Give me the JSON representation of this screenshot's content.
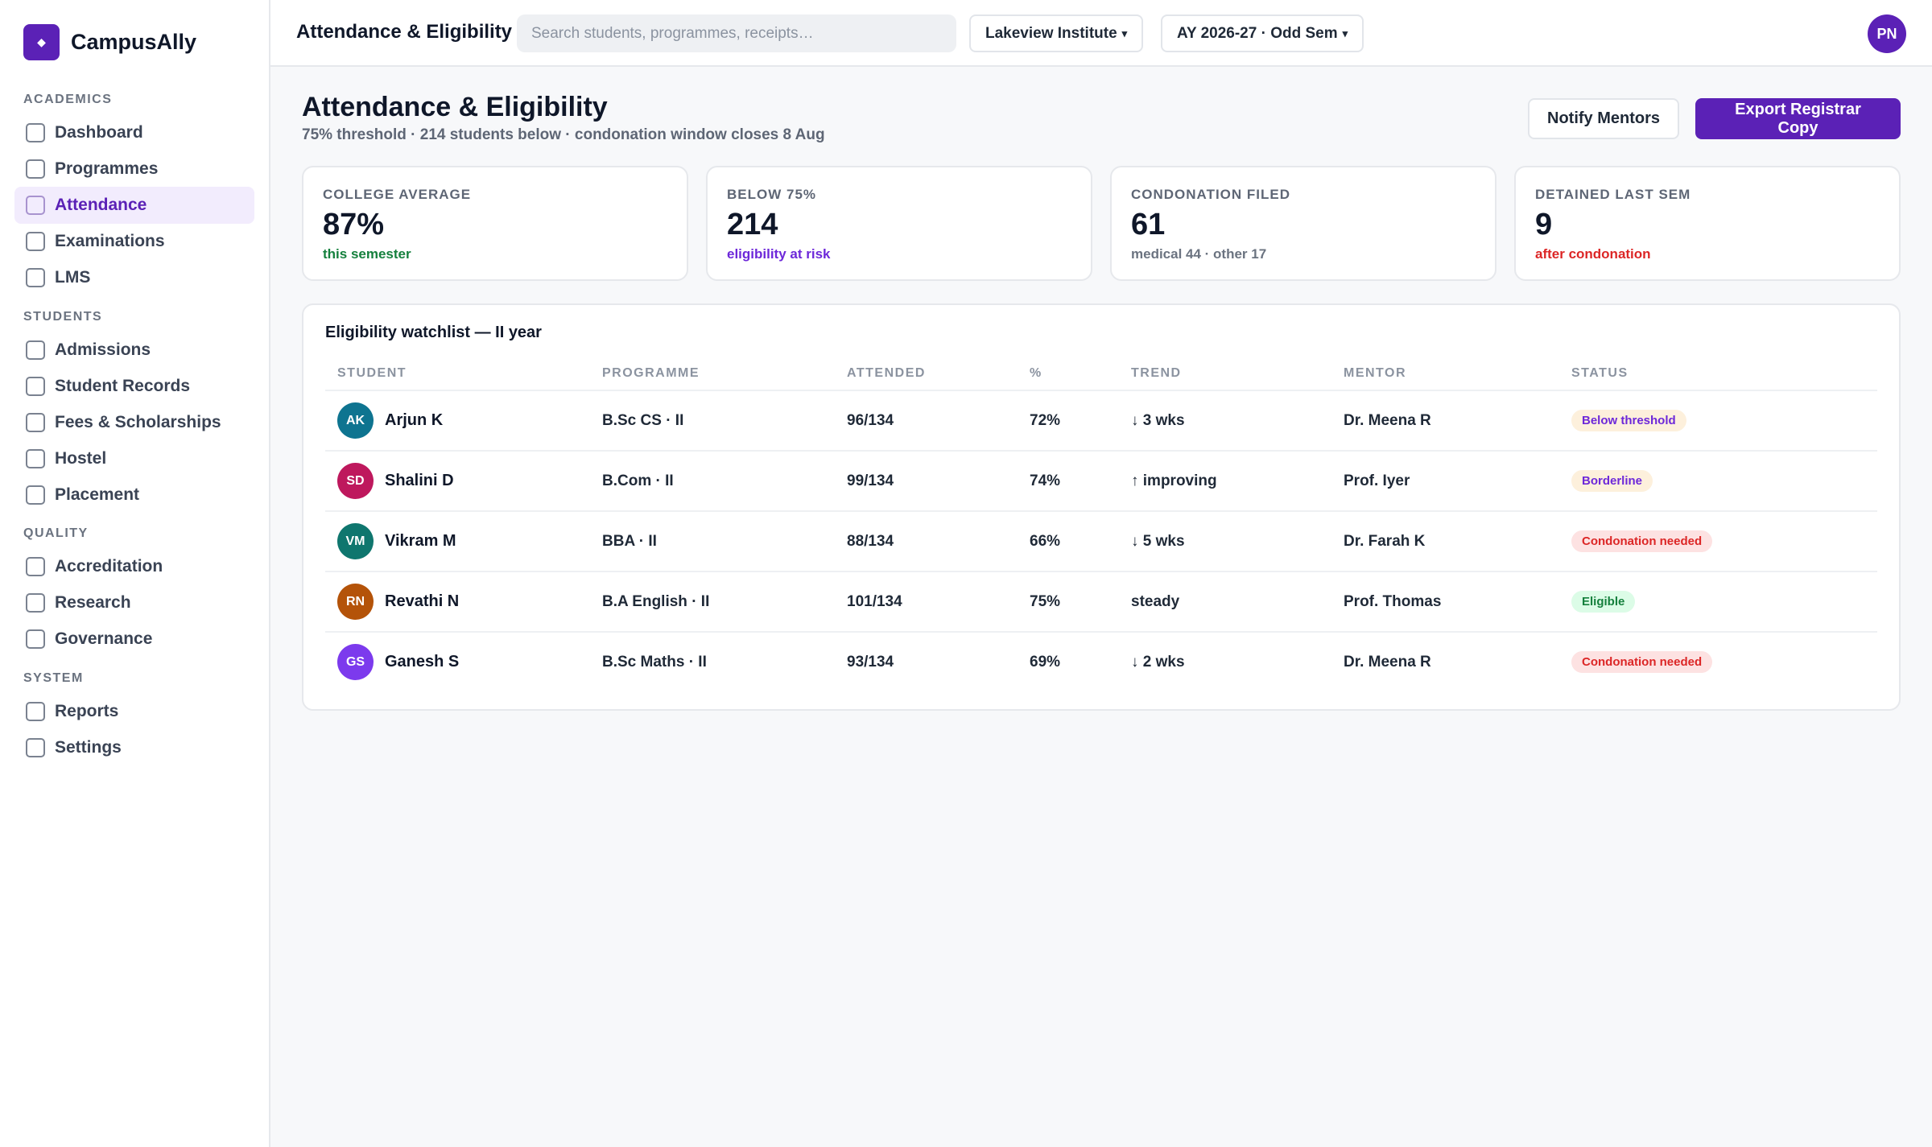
{
  "brand": {
    "logo_glyph": "◆",
    "name": "CampusAlly"
  },
  "sidebar": {
    "sections": [
      {
        "label": "ACADEMICS",
        "items": [
          {
            "label": "Dashboard",
            "active": false
          },
          {
            "label": "Programmes",
            "active": false
          },
          {
            "label": "Attendance",
            "active": true
          },
          {
            "label": "Examinations",
            "active": false
          },
          {
            "label": "LMS",
            "active": false
          }
        ]
      },
      {
        "label": "STUDENTS",
        "items": [
          {
            "label": "Admissions",
            "active": false
          },
          {
            "label": "Student Records",
            "active": false
          },
          {
            "label": "Fees & Scholarships",
            "active": false
          },
          {
            "label": "Hostel",
            "active": false
          },
          {
            "label": "Placement",
            "active": false
          }
        ]
      },
      {
        "label": "QUALITY",
        "items": [
          {
            "label": "Accreditation",
            "active": false
          },
          {
            "label": "Research",
            "active": false
          },
          {
            "label": "Governance",
            "active": false
          }
        ]
      },
      {
        "label": "SYSTEM",
        "items": [
          {
            "label": "Reports",
            "active": false
          },
          {
            "label": "Settings",
            "active": false
          }
        ]
      }
    ]
  },
  "topbar": {
    "title": "Attendance & Eligibility",
    "search_placeholder": "Search students, programmes, receipts…",
    "institute": "Lakeview Institute",
    "term": "AY 2026-27 · Odd Sem",
    "caret": "▾",
    "user_initials": "PN"
  },
  "header": {
    "title": "Attendance & Eligibility",
    "subtitle": "75% threshold · 214 students below · condonation window closes 8 Aug",
    "notify_label": "Notify Mentors",
    "export_label": "Export Registrar Copy"
  },
  "kpis": [
    {
      "label": "COLLEGE AVERAGE",
      "value": "87%",
      "note": "this semester",
      "note_color": "#15803d"
    },
    {
      "label": "BELOW 75%",
      "value": "214",
      "note": "eligibility at risk",
      "note_color": "#6d28d9"
    },
    {
      "label": "CONDONATION FILED",
      "value": "61",
      "note": "medical 44 · other 17",
      "note_color": "#6b7380"
    },
    {
      "label": "DETAINED LAST SEM",
      "value": "9",
      "note": "after condonation",
      "note_color": "#dc2626"
    }
  ],
  "watchlist": {
    "title": "Eligibility watchlist — II year",
    "columns": [
      "STUDENT",
      "PROGRAMME",
      "ATTENDED",
      "%",
      "TREND",
      "MENTOR",
      "STATUS"
    ],
    "rows": [
      {
        "initials": "AK",
        "avatar_color": "#0e7490",
        "name": "Arjun K",
        "programme": "B.Sc CS · II",
        "attended": "96/134",
        "pct": "72%",
        "trend": "↓ 3 wks",
        "mentor": "Dr. Meena R",
        "status": "Below threshold",
        "status_bg": "#fdf0dc",
        "status_fg": "#6d28d9"
      },
      {
        "initials": "SD",
        "avatar_color": "#be185d",
        "name": "Shalini D",
        "programme": "B.Com · II",
        "attended": "99/134",
        "pct": "74%",
        "trend": "↑ improving",
        "mentor": "Prof. Iyer",
        "status": "Borderline",
        "status_bg": "#fdf0dc",
        "status_fg": "#6d28d9"
      },
      {
        "initials": "VM",
        "avatar_color": "#0f766e",
        "name": "Vikram M",
        "programme": "BBA · II",
        "attended": "88/134",
        "pct": "66%",
        "trend": "↓ 5 wks",
        "mentor": "Dr. Farah K",
        "status": "Condonation needed",
        "status_bg": "#fde2e2",
        "status_fg": "#dc2626"
      },
      {
        "initials": "RN",
        "avatar_color": "#b45309",
        "name": "Revathi N",
        "programme": "B.A English · II",
        "attended": "101/134",
        "pct": "75%",
        "trend": "steady",
        "mentor": "Prof. Thomas",
        "status": "Eligible",
        "status_bg": "#dcfce7",
        "status_fg": "#15803d"
      },
      {
        "initials": "GS",
        "avatar_color": "#7c3aed",
        "name": "Ganesh S",
        "programme": "B.Sc Maths · II",
        "attended": "93/134",
        "pct": "69%",
        "trend": "↓ 2 wks",
        "mentor": "Dr. Meena R",
        "status": "Condonation needed",
        "status_bg": "#fde2e2",
        "status_fg": "#dc2626"
      }
    ]
  }
}
